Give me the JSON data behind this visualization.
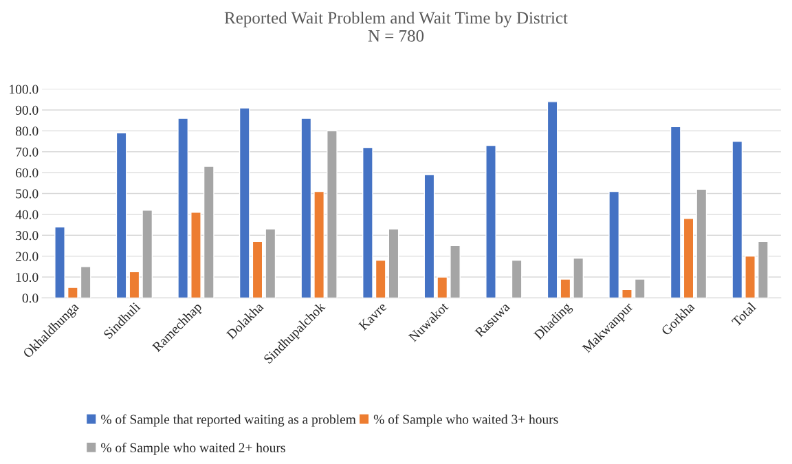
{
  "chart_data": {
    "type": "bar",
    "title": "Reported Wait Problem and Wait Time by District\nN = 780",
    "categories": [
      "Okhaldhunga",
      "Sindhuli",
      "Ramechhap",
      "Dolakha",
      "Sindhupalchok",
      "Kavre",
      "Nuwakot",
      "Rasuwa",
      "Dhading",
      "Makwanpur",
      "Gorkha",
      "Total"
    ],
    "series": [
      {
        "name": "% of Sample that reported waiting as a problem",
        "color": "#4472c4",
        "values": [
          34,
          79,
          86,
          91,
          86,
          72,
          59,
          73,
          94,
          51,
          82,
          75
        ]
      },
      {
        "name": "% of Sample who waited 3+ hours",
        "color": "#ed7d31",
        "values": [
          5,
          12.5,
          41,
          27,
          51,
          18,
          10,
          null,
          9,
          4,
          38,
          20
        ]
      },
      {
        "name": "% of Sample who waited 2+ hours",
        "color": "#a5a5a5",
        "values": [
          15,
          42,
          63,
          33,
          80,
          33,
          25,
          18,
          19,
          9,
          52,
          27
        ]
      }
    ],
    "ylim": [
      0,
      100
    ],
    "yticks": [
      {
        "value": 0,
        "label": "0.0"
      },
      {
        "value": 10,
        "label": "10.0"
      },
      {
        "value": 20,
        "label": "20.0"
      },
      {
        "value": 30,
        "label": "30.0"
      },
      {
        "value": 40,
        "label": "40.0"
      },
      {
        "value": 50,
        "label": "50.0"
      },
      {
        "value": 60,
        "label": "60.0"
      },
      {
        "value": 70,
        "label": "70.0"
      },
      {
        "value": 80,
        "label": "80.0"
      },
      {
        "value": 90,
        "label": "90.0"
      },
      {
        "value": 100,
        "label": "100.0"
      }
    ],
    "grid": "y",
    "legend": "bottom"
  }
}
